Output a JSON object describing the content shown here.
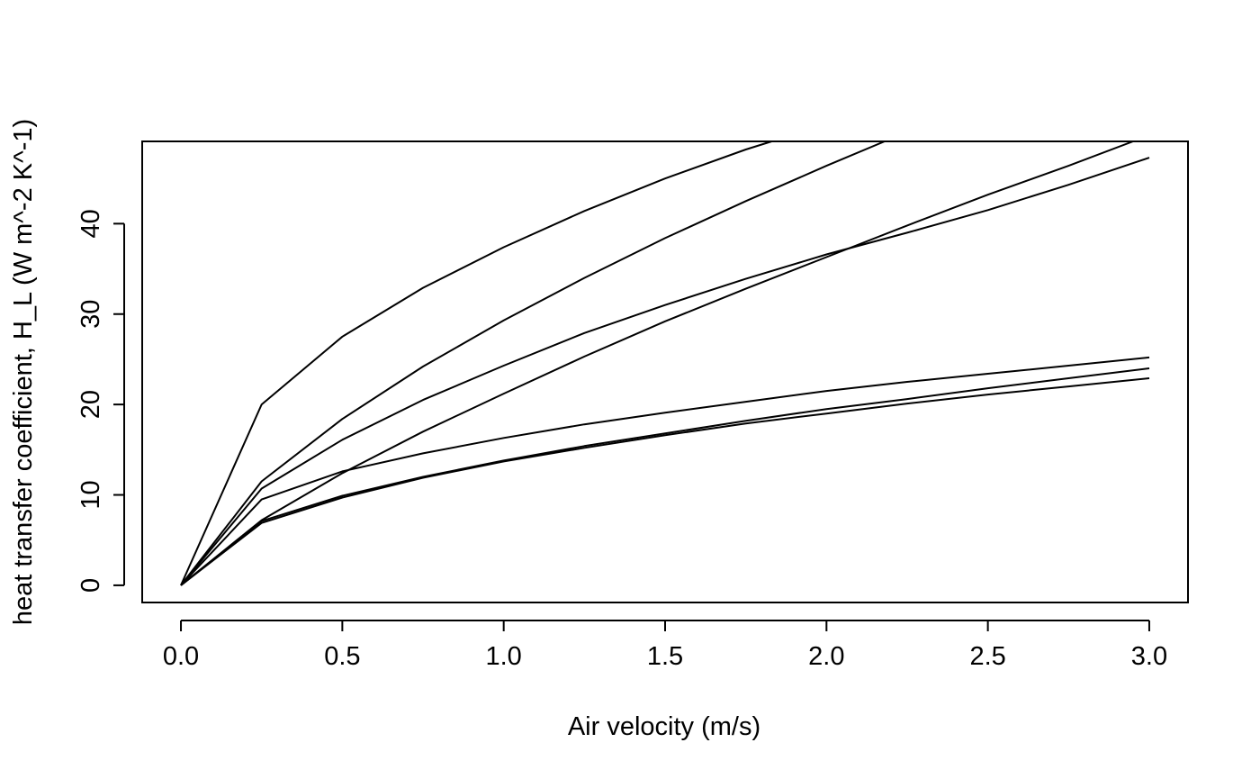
{
  "chart_data": {
    "type": "line",
    "title": "",
    "xlabel": "Air velocity (m/s)",
    "ylabel": "heat transfer coefficient, H_L (W m^-2 K^-1)",
    "xlim": [
      -0.12,
      3.12
    ],
    "ylim": [
      -1.9,
      49.1
    ],
    "x_ticks": [
      0.0,
      0.5,
      1.0,
      1.5,
      2.0,
      2.5,
      3.0
    ],
    "x_tick_labels": [
      "0.0",
      "0.5",
      "1.0",
      "1.5",
      "2.0",
      "2.5",
      "3.0"
    ],
    "y_ticks": [
      0,
      10,
      20,
      30,
      40
    ],
    "y_tick_labels": [
      "0",
      "10",
      "20",
      "30",
      "40"
    ],
    "grid": false,
    "legend": "none",
    "line_color": "#000000",
    "series": [
      {
        "x": [
          0,
          0.25,
          0.5,
          0.75,
          1.0,
          1.25,
          1.5,
          1.75,
          1.83
        ],
        "values": [
          0,
          20.0,
          27.5,
          32.9,
          37.4,
          41.4,
          45.0,
          48.2,
          49.1
        ]
      },
      {
        "x": [
          0,
          0.25,
          0.5,
          0.75,
          1.0,
          1.25,
          1.5,
          1.75,
          2.0,
          2.18
        ],
        "values": [
          0,
          11.5,
          18.4,
          24.2,
          29.3,
          34.0,
          38.4,
          42.5,
          46.4,
          49.1
        ]
      },
      {
        "x": [
          0,
          0.25,
          0.5,
          0.75,
          1.0,
          1.25,
          1.5,
          1.75,
          2.0,
          2.25,
          2.5,
          2.75,
          3.0
        ],
        "values": [
          0,
          10.7,
          16.1,
          20.5,
          24.3,
          27.9,
          31.0,
          33.9,
          36.6,
          39.0,
          41.5,
          44.3,
          47.3
        ]
      },
      {
        "x": [
          0,
          0.25,
          0.5,
          0.75,
          1.0,
          1.25,
          1.5,
          1.75,
          2.0,
          2.25,
          2.5,
          2.75,
          2.95
        ],
        "values": [
          0,
          7.2,
          12.4,
          17.0,
          21.2,
          25.3,
          29.2,
          32.8,
          36.3,
          39.8,
          43.2,
          46.4,
          49.1
        ]
      },
      {
        "x": [
          0,
          0.25,
          0.5,
          0.75,
          1.0,
          1.25,
          1.5,
          1.75,
          2.0,
          2.25,
          2.5,
          2.75,
          3.0
        ],
        "values": [
          0,
          9.5,
          12.6,
          14.6,
          16.3,
          17.8,
          19.1,
          20.3,
          21.5,
          22.5,
          23.4,
          24.3,
          25.2
        ]
      },
      {
        "x": [
          0,
          0.25,
          0.5,
          0.75,
          1.0,
          1.25,
          1.5,
          1.75,
          2.0,
          2.25,
          2.5,
          2.75,
          3.0
        ],
        "values": [
          0,
          7.1,
          9.9,
          12.0,
          13.8,
          15.4,
          16.8,
          18.2,
          19.5,
          20.6,
          21.8,
          22.9,
          24.0
        ]
      },
      {
        "x": [
          0,
          0.25,
          0.5,
          0.75,
          1.0,
          1.25,
          1.5,
          1.75,
          2.0,
          2.25,
          2.5,
          2.75,
          3.0
        ],
        "values": [
          0,
          6.9,
          9.7,
          11.9,
          13.7,
          15.2,
          16.6,
          17.9,
          19.0,
          20.1,
          21.1,
          22.0,
          22.9
        ]
      }
    ]
  }
}
